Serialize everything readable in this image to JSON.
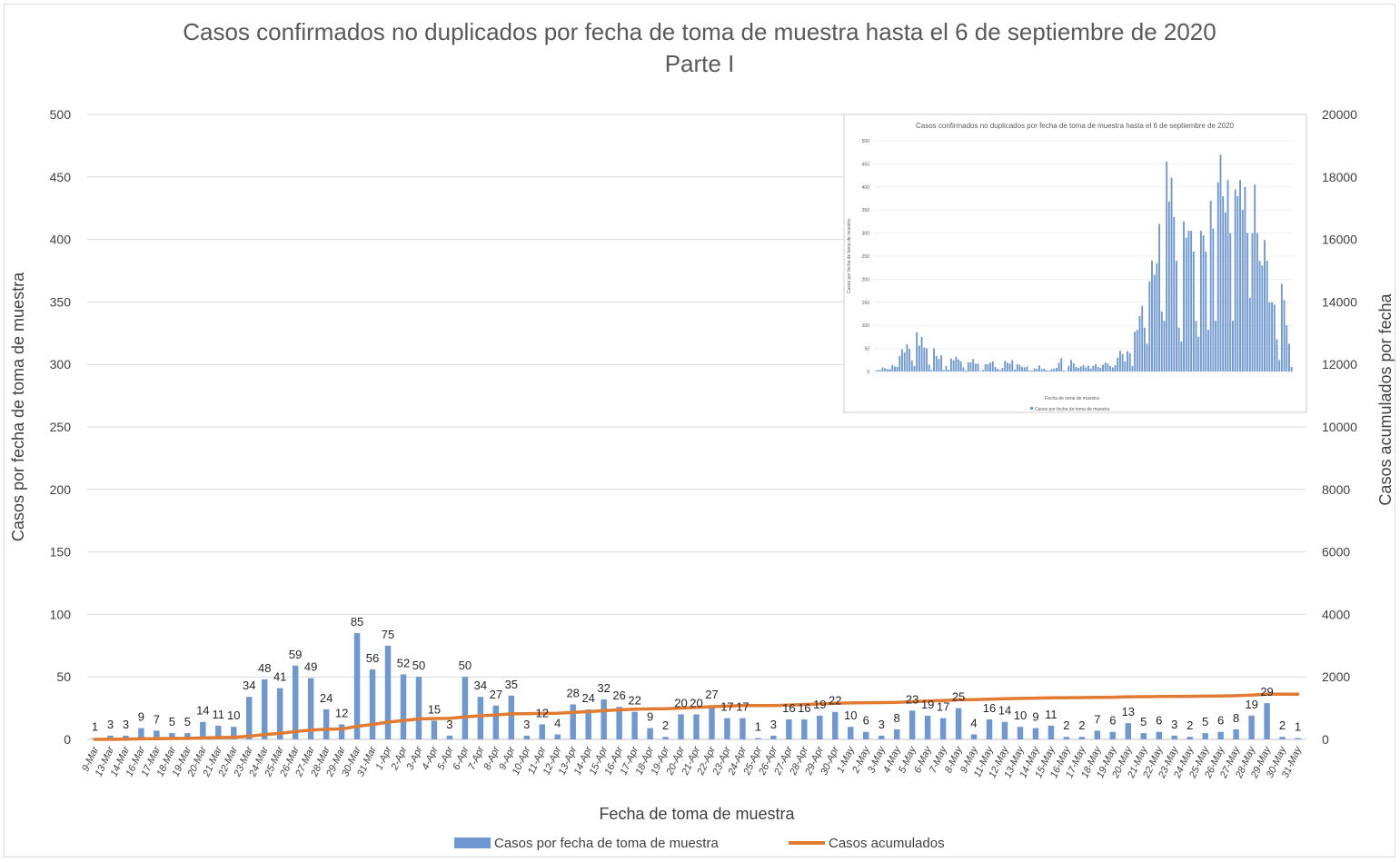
{
  "chart_data": {
    "type": "bar",
    "title": "Casos confirmados no duplicados por fecha de toma de muestra hasta el 6 de septiembre de 2020",
    "subtitle": "Parte I",
    "xlabel": "Fecha de toma de muestra",
    "ylabel": "Casos por fecha de toma de muestra",
    "y2label": "Casos acumulados por fecha",
    "ylim": [
      0,
      500
    ],
    "yticks": [
      0,
      50,
      100,
      150,
      200,
      250,
      300,
      350,
      400,
      450,
      500
    ],
    "y2lim": [
      0,
      20000
    ],
    "y2ticks": [
      0,
      2000,
      4000,
      6000,
      8000,
      10000,
      12000,
      14000,
      16000,
      18000,
      20000
    ],
    "grid": true,
    "legend_position": "bottom",
    "colors": {
      "bars": "#6f98d1",
      "line": "#e07b31",
      "grid": "#d9d9d9",
      "axis": "#bfbfbf"
    },
    "categories": [
      "9-Mar",
      "13-Mar",
      "14-Mar",
      "16-Mar",
      "17-Mar",
      "18-Mar",
      "19-Mar",
      "20-Mar",
      "21-Mar",
      "22-Mar",
      "23-Mar",
      "24-Mar",
      "25-Mar",
      "26-Mar",
      "27-Mar",
      "28-Mar",
      "29-Mar",
      "30-Mar",
      "31-Mar",
      "1-Apr",
      "2-Apr",
      "3-Apr",
      "4-Apr",
      "5-Apr",
      "6-Apr",
      "7-Apr",
      "8-Apr",
      "9-Apr",
      "10-Apr",
      "11-Apr",
      "12-Apr",
      "13-Apr",
      "14-Apr",
      "15-Apr",
      "16-Apr",
      "17-Apr",
      "18-Apr",
      "19-Apr",
      "20-Apr",
      "21-Apr",
      "22-Apr",
      "23-Apr",
      "24-Apr",
      "25-Apr",
      "26-Apr",
      "27-Apr",
      "28-Apr",
      "29-Apr",
      "30-Apr",
      "1-May",
      "2-May",
      "3-May",
      "4-May",
      "5-May",
      "6-May",
      "7-May",
      "8-May",
      "9-May",
      "11-May",
      "12-May",
      "13-May",
      "14-May",
      "15-May",
      "16-May",
      "17-May",
      "18-May",
      "19-May",
      "20-May",
      "21-May",
      "22-May",
      "23-May",
      "24-May",
      "25-May",
      "26-May",
      "27-May",
      "28-May",
      "29-May",
      "30-May",
      "31-May"
    ],
    "series": [
      {
        "name": "Casos por fecha de toma de muestra",
        "axis": "left",
        "kind": "bar",
        "values": [
          1,
          3,
          3,
          9,
          7,
          5,
          5,
          14,
          11,
          10,
          34,
          48,
          41,
          59,
          49,
          24,
          12,
          85,
          56,
          75,
          52,
          50,
          15,
          3,
          50,
          34,
          27,
          35,
          3,
          12,
          4,
          28,
          24,
          32,
          26,
          22,
          9,
          2,
          20,
          20,
          27,
          17,
          17,
          1,
          3,
          16,
          16,
          19,
          22,
          10,
          6,
          3,
          8,
          23,
          19,
          17,
          25,
          4,
          16,
          14,
          10,
          9,
          11,
          2,
          2,
          7,
          6,
          13,
          5,
          6,
          3,
          2,
          5,
          6,
          8,
          19,
          29,
          2,
          1
        ],
        "labels": [
          "1",
          "3",
          "3",
          "9",
          "7",
          "5",
          "5",
          "14",
          "11",
          "10",
          "34",
          "48",
          "41",
          "59",
          "49",
          "24",
          "12",
          "85",
          "56",
          "75",
          "52",
          "50",
          "15",
          "3",
          "50",
          "34",
          "27",
          "35",
          "3",
          "12",
          "4",
          "28",
          "24",
          "32",
          "26",
          "22",
          "9",
          "2",
          "20",
          "20",
          "27",
          "17",
          "17",
          "1",
          "3",
          "16",
          "16",
          "19",
          "22",
          "10",
          "6",
          "3",
          "8",
          "23",
          "19",
          "17",
          "25",
          "4",
          "16",
          "14",
          "10",
          "9",
          "11",
          "2",
          "2",
          "7",
          "6",
          "13",
          "5",
          "6",
          "3",
          "2",
          "5",
          "6",
          "8",
          "19",
          "29",
          "2",
          "1"
        ]
      },
      {
        "name": "Casos acumulados",
        "axis": "right",
        "kind": "line",
        "values": [
          1,
          4,
          7,
          16,
          23,
          28,
          33,
          47,
          58,
          68,
          102,
          150,
          191,
          250,
          299,
          323,
          335,
          420,
          476,
          551,
          603,
          653,
          668,
          671,
          721,
          755,
          782,
          817,
          820,
          832,
          836,
          864,
          888,
          920,
          946,
          968,
          977,
          979,
          999,
          1019,
          1046,
          1063,
          1080,
          1081,
          1084,
          1100,
          1116,
          1135,
          1157,
          1167,
          1173,
          1176,
          1184,
          1207,
          1226,
          1243,
          1268,
          1272,
          1288,
          1302,
          1312,
          1321,
          1332,
          1334,
          1336,
          1343,
          1349,
          1362,
          1367,
          1373,
          1376,
          1378,
          1383,
          1389,
          1397,
          1416,
          1445,
          1447,
          1448
        ]
      }
    ]
  },
  "inset": {
    "title": "Casos confirmados no duplicados por fecha de toma de muestra hasta el 6 de septiembre de 2020",
    "ylabel": "Casos por fecha de toma de muestra",
    "xlabel": "Fecha de toma de muestra",
    "legend": "Casos por fecha de toma de muestra",
    "yticks": [
      "0",
      "50",
      "100",
      "150",
      "200",
      "250",
      "300",
      "350",
      "400",
      "450",
      "500"
    ],
    "values": [
      1,
      3,
      3,
      9,
      7,
      5,
      5,
      14,
      11,
      10,
      34,
      48,
      41,
      59,
      49,
      24,
      12,
      85,
      56,
      75,
      52,
      50,
      15,
      3,
      50,
      34,
      27,
      35,
      3,
      12,
      4,
      28,
      24,
      32,
      26,
      22,
      9,
      2,
      20,
      20,
      27,
      17,
      17,
      1,
      3,
      16,
      16,
      19,
      22,
      10,
      6,
      3,
      8,
      23,
      19,
      17,
      25,
      4,
      16,
      14,
      10,
      9,
      11,
      2,
      2,
      7,
      6,
      13,
      5,
      6,
      3,
      2,
      5,
      6,
      8,
      19,
      29,
      2,
      1,
      12,
      25,
      18,
      10,
      8,
      11,
      14,
      9,
      13,
      7,
      12,
      16,
      10,
      8,
      15,
      20,
      17,
      12,
      9,
      14,
      30,
      45,
      38,
      22,
      44,
      40,
      12,
      86,
      90,
      120,
      142,
      95,
      60,
      195,
      240,
      210,
      235,
      320,
      130,
      110,
      455,
      368,
      420,
      335,
      240,
      95,
      65,
      325,
      290,
      305,
      305,
      260,
      110,
      75,
      305,
      295,
      260,
      90,
      370,
      310,
      110,
      410,
      470,
      380,
      345,
      415,
      300,
      110,
      395,
      380,
      415,
      350,
      400,
      300,
      160,
      300,
      405,
      300,
      240,
      230,
      285,
      240,
      150,
      150,
      145,
      70,
      25,
      190,
      155,
      100,
      60,
      10
    ]
  }
}
